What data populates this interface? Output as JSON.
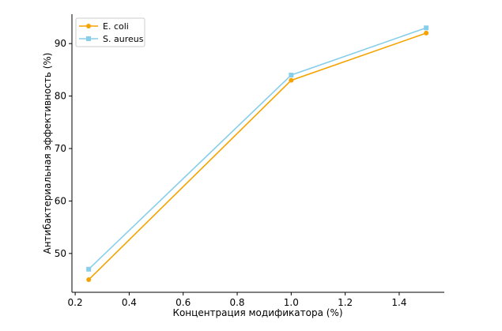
{
  "chart_data": {
    "type": "line",
    "title": "",
    "xlabel": "Концентрация модификатора (%)",
    "ylabel": "Антибактериальная эффективность (%)",
    "xlim": [
      0.188,
      1.567
    ],
    "ylim": [
      42.6,
      95.6
    ],
    "xticks": [
      0.2,
      0.4,
      0.6,
      0.8,
      1.0,
      1.2,
      1.4
    ],
    "xtick_labels": [
      "0.2",
      "0.4",
      "0.6",
      "0.8",
      "1.0",
      "1.2",
      "1.4"
    ],
    "yticks": [
      50,
      60,
      70,
      80,
      90
    ],
    "ytick_labels": [
      "50",
      "60",
      "70",
      "80",
      "90"
    ],
    "grid": false,
    "legend": "top-left",
    "x": [
      0.25,
      1.0,
      1.5
    ],
    "series": [
      {
        "name": "E. coli",
        "values": [
          45,
          83,
          92
        ],
        "color": "#f5a300",
        "marker": "circle"
      },
      {
        "name": "S. aureus",
        "values": [
          47,
          84,
          93
        ],
        "color": "#87ceeb",
        "marker": "square"
      }
    ]
  }
}
